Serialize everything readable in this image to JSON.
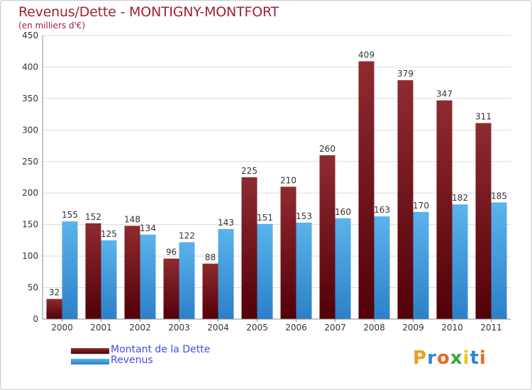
{
  "header": {
    "title": "Revenus/Dette - MONTIGNY-MONTFORT",
    "subtitle": "(en milliers d'€)"
  },
  "colors": {
    "dette": "#7a1e24",
    "revenus": "#3a9ae0",
    "title": "#a0203a",
    "legend_text": "#4a4ae0"
  },
  "chart_data": {
    "type": "bar",
    "categories": [
      "2000",
      "2001",
      "2002",
      "2003",
      "2004",
      "2005",
      "2006",
      "2007",
      "2008",
      "2009",
      "2010",
      "2011"
    ],
    "series": [
      {
        "name": "Montant de la Dette",
        "values": [
          32,
          152,
          148,
          96,
          88,
          225,
          210,
          260,
          409,
          379,
          347,
          311
        ]
      },
      {
        "name": "Revenus",
        "values": [
          155,
          125,
          134,
          122,
          143,
          151,
          153,
          160,
          163,
          170,
          182,
          185
        ]
      }
    ],
    "ylim": [
      0,
      450
    ],
    "yticks": [
      "0",
      "50",
      "100",
      "150",
      "200",
      "250",
      "300",
      "350",
      "400",
      "450"
    ],
    "grid": true,
    "legend_position": "bottom-left"
  },
  "legend": [
    {
      "label": "Montant de la Dette",
      "color": "#7a1e24"
    },
    {
      "label": "Revenus",
      "color": "#3a9ae0"
    }
  ],
  "logo": {
    "letters": [
      "P",
      "r",
      "o",
      "x",
      "i",
      "t",
      "i"
    ],
    "colors": [
      "#e8a020",
      "#2a8ad8",
      "#e86a20",
      "#3aa83a",
      "#e8c820",
      "#2a8ad8",
      "#e86a20"
    ]
  }
}
